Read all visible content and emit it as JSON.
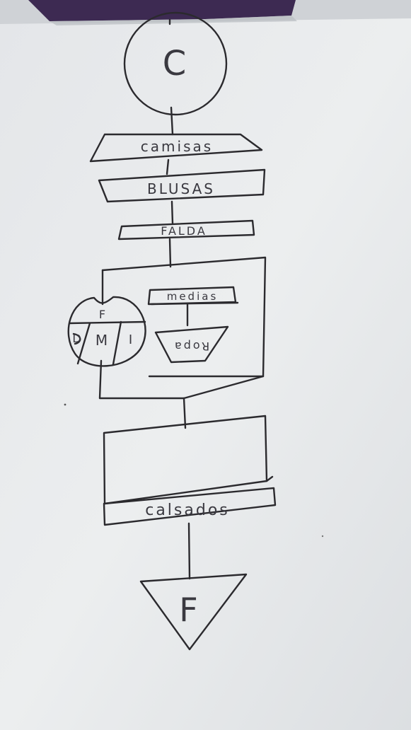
{
  "diagram": {
    "start_label": "C",
    "steps": [
      "camisas",
      "BLUSAS",
      "FALDA"
    ],
    "loop": {
      "control": [
        "F",
        "D",
        "M",
        "I"
      ],
      "body": [
        "medias",
        "Ropa"
      ]
    },
    "final_step": "calsados",
    "end_label": "F"
  },
  "colors": {
    "paper": "#e9eaec",
    "ink": "#2b2a2e",
    "binder_purple": "#3d2a52"
  }
}
